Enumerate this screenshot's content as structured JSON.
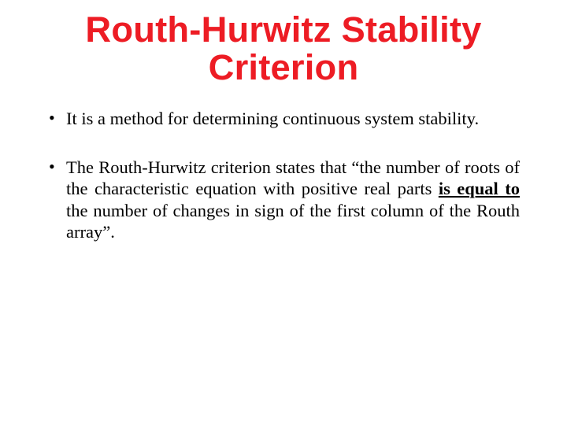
{
  "title": {
    "text": "Routh-Hurwitz Stability Criterion",
    "color": "#ed1c24",
    "fontsize_pt": 34
  },
  "body": {
    "color": "#000000",
    "fontsize_pt": 22.5,
    "line_height": 1.22,
    "bullets": [
      {
        "segments": [
          {
            "text": "It is a method for determining continuous system stability."
          }
        ]
      },
      {
        "segments": [
          {
            "text": "The Routh-Hurwitz criterion states that “the number of roots of the characteristic equation with positive real parts "
          },
          {
            "text": "is equal to",
            "underline_bold": true
          },
          {
            "text": " the number of changes in sign of the first column of the Routh array”."
          }
        ]
      }
    ]
  }
}
